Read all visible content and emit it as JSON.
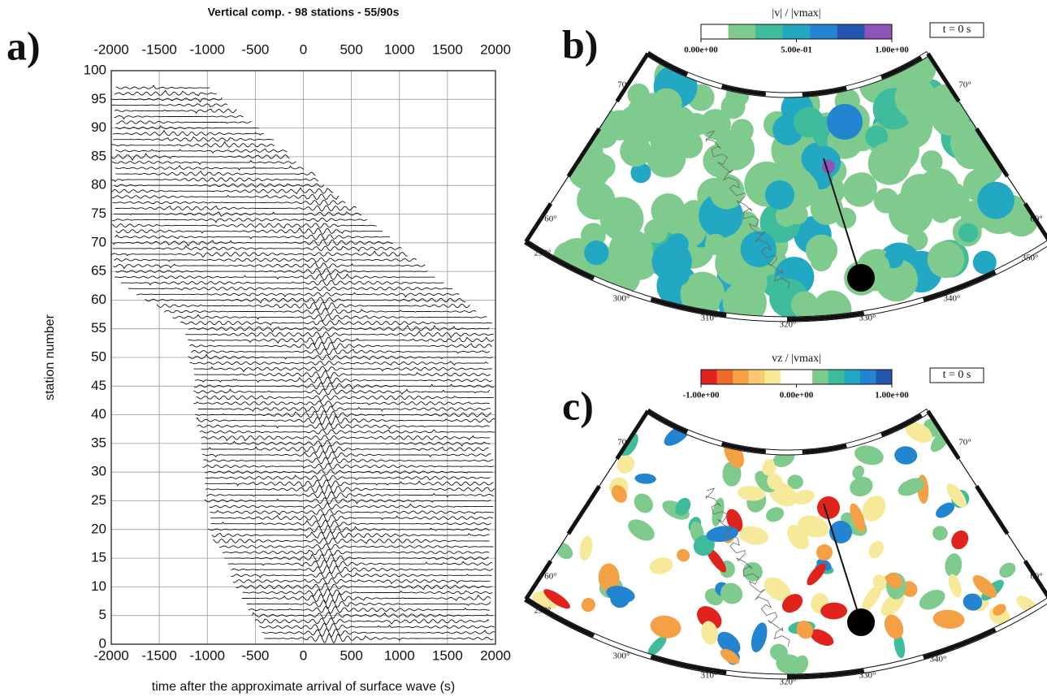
{
  "chart_data": [
    {
      "type": "wiggle",
      "panel_label": "a)",
      "title": "Vertical comp. - 98 stations - 55/90s",
      "x_label": "time after the approximate arrival of surface wave (s)",
      "y_label": "station number",
      "xlim": [
        -2000,
        2000
      ],
      "xticks": [
        -2000,
        -1500,
        -1000,
        -500,
        0,
        500,
        1000,
        1500,
        2000
      ],
      "ylim": [
        0,
        100
      ],
      "yticks": [
        0,
        5,
        10,
        15,
        20,
        25,
        30,
        35,
        40,
        45,
        50,
        55,
        60,
        65,
        70,
        75,
        80,
        85,
        90,
        95,
        100
      ],
      "grid": true
    },
    {
      "type": "map",
      "panel_label": "b)",
      "colorbar_title": "|v| / |vmax|",
      "time_label": "t = 0 s",
      "colorbar_lim": [
        0,
        1
      ],
      "colorbar_ticks": [
        {
          "value": 0,
          "label": "0.00e+00"
        },
        {
          "value": 0.5,
          "label": "5.00e-01"
        },
        {
          "value": 1,
          "label": "1.00e+00"
        }
      ],
      "colorbar_colors": [
        "#ffffff",
        "#7fcb8e",
        "#3fbc9c",
        "#23a8c4",
        "#2384cf",
        "#2256b0",
        "#8e55b8"
      ],
      "lat_labels": [
        "70°",
        "70°",
        "60°",
        "60°"
      ],
      "lon_labels": [
        "290°",
        "300°",
        "310°",
        "320°",
        "330°",
        "340°",
        "350°"
      ]
    },
    {
      "type": "map",
      "panel_label": "c)",
      "colorbar_title": "vz / |vmax|",
      "time_label": "t = 0 s",
      "colorbar_lim": [
        -1,
        1
      ],
      "colorbar_ticks": [
        {
          "value": -1,
          "label": "-1.00e+00"
        },
        {
          "value": 0,
          "label": "0.00e+00"
        },
        {
          "value": 1,
          "label": "1.00e+00"
        }
      ],
      "colorbar_colors": [
        "#e0231c",
        "#ee6a2c",
        "#f4a146",
        "#f7c970",
        "#f6ea9a",
        "#ffffff",
        "#ffffff",
        "#7fcb8e",
        "#3fbc9c",
        "#23a8c4",
        "#2384cf",
        "#2256b0"
      ],
      "lat_labels": [
        "70°",
        "70°",
        "60°",
        "60°"
      ],
      "lon_labels": [
        "290°",
        "300°",
        "310°",
        "320°",
        "330°",
        "340°"
      ]
    }
  ]
}
